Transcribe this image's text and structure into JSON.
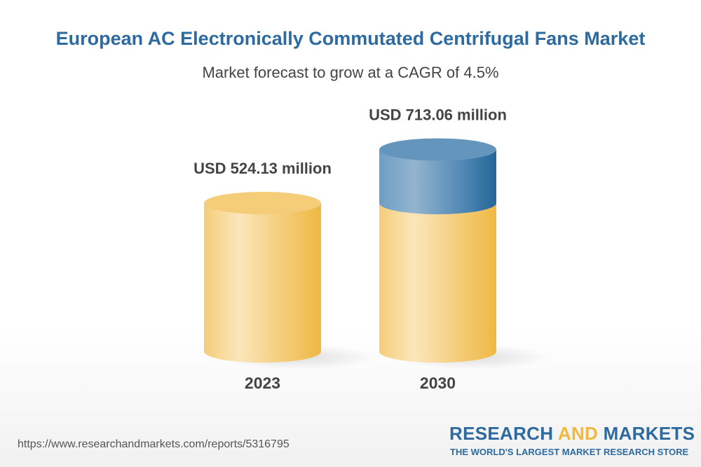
{
  "chart_data": {
    "type": "bar",
    "style": "3d-cylinder",
    "title": "European AC Electronically Commutated Centrifugal Fans Market",
    "subtitle": "Market forecast to grow at a CAGR of 4.5%",
    "categories": [
      "2023",
      "2030"
    ],
    "values": [
      524.13,
      713.06
    ],
    "data_labels": [
      "USD 524.13 million",
      "USD 713.06 million"
    ],
    "unit": "USD million",
    "colors": {
      "base": "#f2c15a",
      "growth": "#3f7fb0"
    },
    "grid": false
  },
  "footer": {
    "url": "https://www.researchandmarkets.com/reports/5316795",
    "logo_part1": "RESEARCH ",
    "logo_part2": "AND",
    "logo_part3": " MARKETS",
    "tagline": "THE WORLD'S LARGEST MARKET RESEARCH STORE"
  }
}
